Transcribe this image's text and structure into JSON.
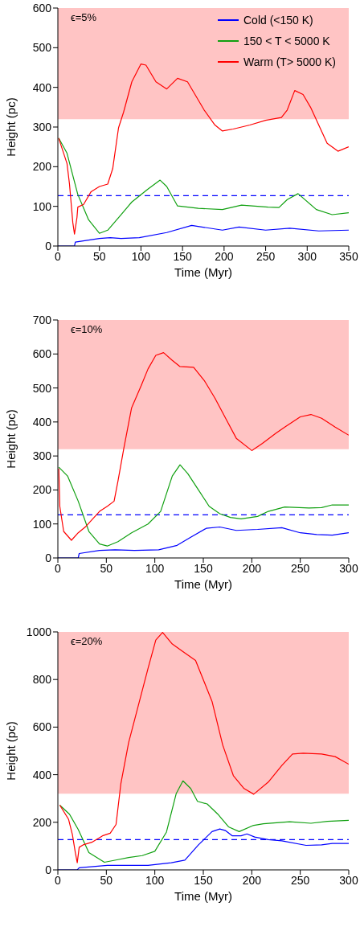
{
  "chart_data": [
    {
      "type": "line",
      "annotations": [
        "ϵ=5%"
      ],
      "xlabel": "Time (Myr)",
      "ylabel": "Height (pc)",
      "xlim": [
        0,
        350
      ],
      "xticks": [
        0,
        50,
        100,
        150,
        200,
        250,
        300,
        350
      ],
      "ylim": [
        0,
        600
      ],
      "yticks": [
        0,
        100,
        200,
        300,
        400,
        500,
        600
      ],
      "legend": "top right",
      "marker": "none",
      "line_style": "solid",
      "bands": [
        {
          "axis": "y",
          "from": 320,
          "to": 600,
          "color": "#ffc4c4"
        }
      ],
      "ref_lines": [
        {
          "axis": "y",
          "value": 127,
          "color": "#0000ff",
          "line_style": "dashed"
        }
      ],
      "series": [
        {
          "name": "Cold (<150 K)",
          "color": "#0000ff",
          "x": [
            0,
            20,
            21,
            50,
            63,
            76,
            98,
            131,
            161,
            198,
            218,
            250,
            279,
            314,
            350
          ],
          "values": [
            0,
            0,
            10,
            19,
            21,
            19,
            21,
            34,
            52,
            40,
            48,
            40,
            45,
            38,
            40
          ]
        },
        {
          "name": "150 < T < 5000 K",
          "color": "#10a010",
          "x": [
            1,
            11,
            24,
            37,
            50,
            60,
            76,
            89,
            108,
            123,
            131,
            144,
            169,
            198,
            221,
            253,
            266,
            276,
            289,
            311,
            330,
            350
          ],
          "values": [
            272,
            234,
            130,
            66,
            32,
            40,
            79,
            111,
            143,
            166,
            150,
            101,
            95,
            92,
            103,
            98,
            97,
            117,
            132,
            92,
            79,
            84
          ]
        },
        {
          "name": "Warm (T> 5000 K)",
          "color": "#ff0000",
          "x": [
            1,
            11,
            14,
            18,
            20,
            23,
            24,
            31,
            40,
            50,
            60,
            66,
            73,
            79,
            89,
            100,
            106,
            118,
            131,
            144,
            156,
            176,
            189,
            198,
            211,
            231,
            250,
            269,
            276,
            285,
            295,
            304,
            324,
            337,
            350
          ],
          "values": [
            272,
            208,
            156,
            59,
            30,
            72,
            98,
            105,
            137,
            150,
            156,
            195,
            298,
            337,
            414,
            459,
            456,
            414,
            396,
            423,
            414,
            343,
            305,
            290,
            295,
            305,
            317,
            324,
            343,
            392,
            382,
            350,
            259,
            239,
            250
          ]
        }
      ]
    },
    {
      "type": "line",
      "annotations": [
        "ϵ=10%"
      ],
      "xlabel": "Time (Myr)",
      "ylabel": "Height (pc)",
      "xlim": [
        0,
        300
      ],
      "xticks": [
        0,
        50,
        100,
        150,
        200,
        250,
        300
      ],
      "ylim": [
        0,
        700
      ],
      "yticks": [
        0,
        100,
        200,
        300,
        400,
        500,
        600,
        700
      ],
      "legend": false,
      "marker": "none",
      "line_style": "solid",
      "bands": [
        {
          "axis": "y",
          "from": 320,
          "to": 700,
          "color": "#ffc4c4"
        }
      ],
      "ref_lines": [
        {
          "axis": "y",
          "value": 127,
          "color": "#0000ff",
          "line_style": "dashed"
        }
      ],
      "series": [
        {
          "color": "#0000ff",
          "x": [
            0,
            21,
            22,
            43,
            59,
            79,
            104,
            123,
            137,
            153,
            167,
            184,
            206,
            231,
            250,
            267,
            283,
            300
          ],
          "values": [
            0,
            0,
            13,
            22,
            24,
            22,
            24,
            37,
            61,
            87,
            91,
            81,
            84,
            89,
            74,
            69,
            67,
            74
          ]
        },
        {
          "color": "#10a010",
          "x": [
            1,
            10,
            21,
            32,
            43,
            51,
            62,
            76,
            93,
            106,
            118,
            126,
            134,
            145,
            156,
            167,
            178,
            189,
            206,
            217,
            234,
            259,
            272,
            283,
            300
          ],
          "values": [
            267,
            241,
            167,
            78,
            41,
            35,
            48,
            74,
            100,
            137,
            241,
            274,
            248,
            200,
            152,
            130,
            119,
            115,
            122,
            137,
            150,
            147,
            148,
            156,
            156
          ]
        },
        {
          "color": "#ff0000",
          "x": [
            1,
            2,
            6,
            14,
            21,
            29,
            43,
            51,
            58,
            62,
            68,
            76,
            86,
            93,
            101,
            109,
            118,
            126,
            140,
            151,
            162,
            173,
            184,
            200,
            211,
            225,
            234,
            250,
            261,
            272,
            286,
            300
          ],
          "values": [
            263,
            152,
            78,
            52,
            74,
            93,
            137,
            152,
            167,
            226,
            322,
            441,
            507,
            556,
            596,
            604,
            581,
            563,
            561,
            522,
            470,
            411,
            352,
            316,
            337,
            367,
            385,
            415,
            422,
            411,
            385,
            361
          ]
        }
      ]
    },
    {
      "type": "line",
      "annotations": [
        "ϵ=20%"
      ],
      "xlabel": "Time (Myr)",
      "ylabel": "Height (pc)",
      "xlim": [
        0,
        300
      ],
      "xticks": [
        0,
        50,
        100,
        150,
        200,
        250,
        300
      ],
      "ylim": [
        0,
        1000
      ],
      "yticks": [
        0,
        200,
        400,
        600,
        800,
        1000
      ],
      "legend": false,
      "marker": "none",
      "line_style": "solid",
      "bands": [
        {
          "axis": "y",
          "from": 320,
          "to": 1000,
          "color": "#ffc4c4"
        }
      ],
      "ref_lines": [
        {
          "axis": "y",
          "value": 127,
          "color": "#0000ff",
          "line_style": "dashed"
        }
      ],
      "series": [
        {
          "color": "#0000ff",
          "x": [
            0,
            20,
            22,
            51,
            93,
            117,
            131,
            145,
            159,
            167,
            173,
            180,
            189,
            195,
            203,
            217,
            231,
            256,
            272,
            283,
            300
          ],
          "values": [
            0,
            0,
            9,
            19,
            19,
            30,
            41,
            105,
            161,
            172,
            165,
            143,
            143,
            151,
            138,
            127,
            122,
            103,
            105,
            111,
            111
          ]
        },
        {
          "color": "#10a010",
          "x": [
            2,
            12,
            21,
            32,
            48,
            62,
            73,
            87,
            100,
            112,
            122,
            129,
            137,
            144,
            154,
            165,
            176,
            187,
            201,
            212,
            239,
            261,
            278,
            300
          ],
          "values": [
            272,
            234,
            170,
            73,
            32,
            43,
            52,
            60,
            78,
            159,
            320,
            374,
            342,
            288,
            277,
            234,
            181,
            161,
            186,
            194,
            202,
            196,
            204,
            208
          ]
        },
        {
          "color": "#ff0000",
          "x": [
            2,
            11,
            15,
            18,
            20,
            22,
            26,
            35,
            46,
            54,
            60,
            65,
            73,
            82,
            93,
            101,
            108,
            118,
            129,
            142,
            159,
            170,
            181,
            192,
            202,
            217,
            231,
            242,
            253,
            272,
            286,
            300
          ],
          "values": [
            272,
            213,
            148,
            73,
            30,
            95,
            105,
            116,
            143,
            154,
            191,
            363,
            535,
            675,
            847,
            966,
            998,
            949,
            917,
            880,
            708,
            525,
            396,
            342,
            318,
            369,
            439,
            487,
            490,
            487,
            476,
            444
          ]
        }
      ]
    }
  ]
}
